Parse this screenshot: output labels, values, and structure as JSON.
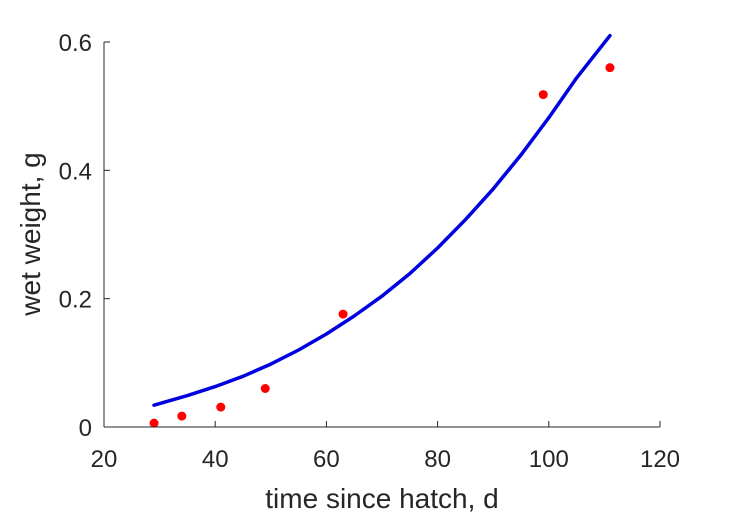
{
  "chart_data": {
    "type": "scatter",
    "title": "",
    "xlabel": "time since hatch, d",
    "ylabel": "wet weight, g",
    "xlim": [
      20,
      120
    ],
    "ylim": [
      0,
      0.6
    ],
    "xticks": [
      20,
      40,
      60,
      80,
      100,
      120
    ],
    "yticks": [
      0,
      0.2,
      0.4,
      0.6
    ],
    "xtick_labels": [
      "20",
      "40",
      "60",
      "80",
      "100",
      "120"
    ],
    "ytick_labels": [
      "0",
      "0.2",
      "0.4",
      "0.6"
    ],
    "grid": false,
    "legend": "none",
    "series": [
      {
        "kind": "scatter",
        "color": "#ff0000",
        "x": [
          29,
          34,
          41,
          49,
          63,
          99,
          111
        ],
        "y": [
          0.006,
          0.017,
          0.031,
          0.06,
          0.176,
          0.518,
          0.56
        ]
      },
      {
        "kind": "line",
        "color": "#0000e0",
        "x": [
          29,
          35,
          40,
          45,
          50,
          55,
          60,
          65,
          70,
          75,
          80,
          85,
          90,
          95,
          100,
          105,
          111
        ],
        "y": [
          0.034,
          0.049,
          0.063,
          0.079,
          0.098,
          0.12,
          0.145,
          0.173,
          0.204,
          0.239,
          0.279,
          0.323,
          0.371,
          0.424,
          0.482,
          0.544,
          0.61
        ]
      }
    ]
  }
}
